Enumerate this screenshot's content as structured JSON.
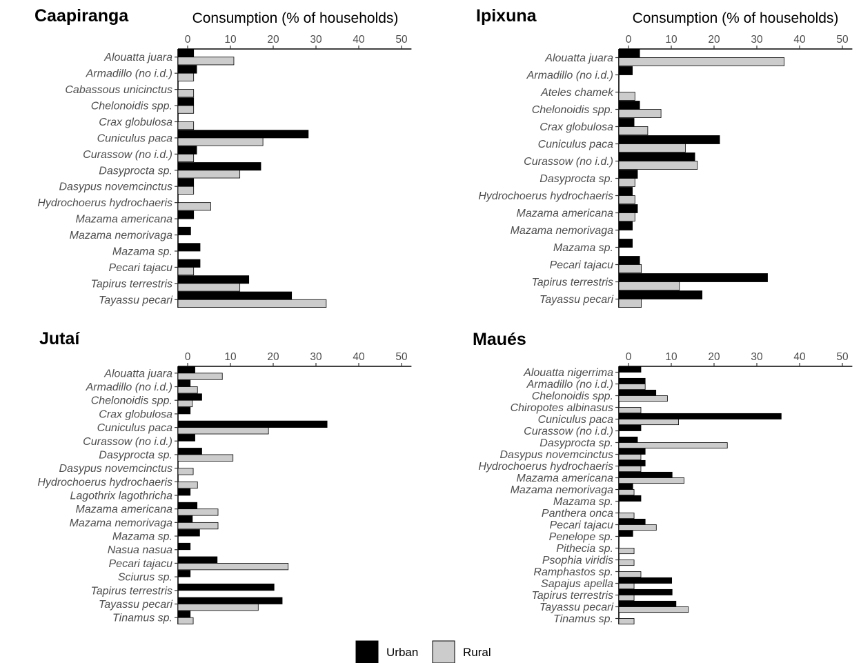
{
  "axis_title": "Consumption (% of households)",
  "colors": {
    "urban": "#000000",
    "rural": "#cccccc"
  },
  "legend": [
    {
      "name": "Urban",
      "color": "#000000"
    },
    {
      "name": "Rural",
      "color": "#cccccc"
    }
  ],
  "chart_data": [
    {
      "type": "bar",
      "orientation": "horizontal",
      "title": "Caapiranga",
      "xlabel": "Consumption (% of households)",
      "xlim": [
        0,
        52
      ],
      "xticks": [
        0,
        10,
        20,
        30,
        40,
        50
      ],
      "categories": [
        "Alouatta juara",
        "Armadillo (no i.d.)",
        "Cabassous unicinctus",
        "Chelonoidis spp.",
        "Crax globulosa",
        "Cuniculus paca",
        "Curassow (no i.d.)",
        "Dasyprocta sp.",
        "Dasypus novemcinctus",
        "Hydrochoerus hydrochaeris",
        "Mazama americana",
        "Mazama nemorivaga",
        "Mazama sp.",
        "Pecari tajacu",
        "Tapirus terrestris",
        "Tayassu pecari"
      ],
      "series": [
        {
          "name": "Urban",
          "values": [
            1.4,
            2.1,
            0,
            1.4,
            0,
            28.2,
            2.1,
            17.1,
            1.4,
            0,
            1.4,
            0.7,
            2.9,
            2.9,
            14.3,
            24.3
          ]
        },
        {
          "name": "Rural",
          "values": [
            10.8,
            1.4,
            1.4,
            1.4,
            1.4,
            17.6,
            1.4,
            12.2,
            1.4,
            5.4,
            0,
            0,
            0,
            1.4,
            12.2,
            32.4
          ]
        }
      ]
    },
    {
      "type": "bar",
      "orientation": "horizontal",
      "title": "Ipixuna",
      "xlabel": "Consumption (% of households)",
      "xlim": [
        0,
        52
      ],
      "xticks": [
        0,
        10,
        20,
        30,
        40,
        50
      ],
      "categories": [
        "Alouatta juara",
        "Armadillo (no i.d.)",
        "Ateles chamek",
        "Chelonoidis spp.",
        "Crax globulosa",
        "Cuniculus paca",
        "Curassow (no i.d.)",
        "Dasyprocta sp.",
        "Hydrochoerus hydrochaeris",
        "Mazama americana",
        "Mazama nemorivaga",
        "Mazama sp.",
        "Pecari tajacu",
        "Tapirus terrestris",
        "Tayassu pecari"
      ],
      "series": [
        {
          "name": "Urban",
          "values": [
            2.6,
            0.9,
            0,
            2.6,
            1.3,
            21.3,
            15.5,
            2.1,
            0.9,
            2.1,
            0.9,
            0.9,
            2.6,
            32.5,
            17.2
          ]
        },
        {
          "name": "Rural",
          "values": [
            36.4,
            0,
            1.5,
            7.6,
            4.5,
            13.3,
            16.1,
            1.5,
            1.5,
            1.5,
            0,
            0,
            3.0,
            11.9,
            3.0
          ]
        }
      ]
    },
    {
      "type": "bar",
      "orientation": "horizontal",
      "title": "Jutaí",
      "xlabel": "",
      "xlim": [
        0,
        52
      ],
      "xticks": [
        0,
        10,
        20,
        30,
        40,
        50
      ],
      "categories": [
        "Alouatta juara",
        "Armadillo (no i.d.)",
        "Chelonoidis spp.",
        "Crax globulosa",
        "Cuniculus paca",
        "Curassow (no i.d.)",
        "Dasyprocta sp.",
        "Dasypus novemcinctus",
        "Hydrochoerus hydrochaeris",
        "Lagothrix lagothricha",
        "Mazama americana",
        "Mazama nemorivaga",
        "Mazama sp.",
        "Nasua nasua",
        "Pecari tajacu",
        "Sciurus sp.",
        "Tapirus terrestris",
        "Tayassu pecari",
        "Tinamus sp."
      ],
      "series": [
        {
          "name": "Urban",
          "values": [
            1.7,
            0.6,
            3.3,
            0.6,
            32.6,
            1.7,
            3.3,
            0,
            0,
            0.6,
            2.2,
            1.1,
            2.8,
            0.6,
            6.9,
            0.6,
            20.2,
            22.1,
            0.6
          ]
        },
        {
          "name": "Rural",
          "values": [
            8.1,
            2.3,
            1.1,
            0,
            18.9,
            0,
            10.6,
            1.3,
            2.3,
            0,
            7.1,
            7.1,
            0,
            0,
            23.5,
            0,
            0,
            16.5,
            1.3
          ]
        }
      ]
    },
    {
      "type": "bar",
      "orientation": "horizontal",
      "title": "Maués",
      "xlabel": "",
      "xlim": [
        0,
        52
      ],
      "xticks": [
        0,
        10,
        20,
        30,
        40,
        50
      ],
      "categories": [
        "Alouatta nigerrima",
        "Armadillo (no i.d.)",
        "Chelonoidis spp.",
        "Chiropotes albinasus",
        "Cuniculus paca",
        "Curassow (no i.d.)",
        "Dasyprocta sp.",
        "Dasypus novemcinctus",
        "Hydrochoerus hydrochaeris",
        "Mazama americana",
        "Mazama nemorivaga",
        "Mazama sp.",
        "Panthera onca",
        "Pecari tajacu",
        "Penelope sp.",
        "Pithecia sp.",
        "Psophia viridis",
        "Ramphastos sp.",
        "Sapajus apella",
        "Tapirus terrestris",
        "Tayassu pecari",
        "Tinamus sp."
      ],
      "series": [
        {
          "name": "Urban",
          "values": [
            2.9,
            3.9,
            6.4,
            0,
            35.7,
            2.9,
            2.1,
            3.9,
            3.9,
            10.2,
            1.0,
            2.9,
            0,
            3.9,
            1.0,
            0,
            0,
            0,
            10.1,
            10.2,
            11.1,
            0
          ]
        },
        {
          "name": "Rural",
          "values": [
            0,
            3.9,
            9.1,
            2.9,
            11.7,
            0,
            23.1,
            2.9,
            2.9,
            13.0,
            1.3,
            0,
            1.3,
            6.5,
            0,
            1.3,
            1.3,
            2.9,
            1.3,
            1.3,
            14.0,
            1.3
          ]
        }
      ]
    }
  ]
}
